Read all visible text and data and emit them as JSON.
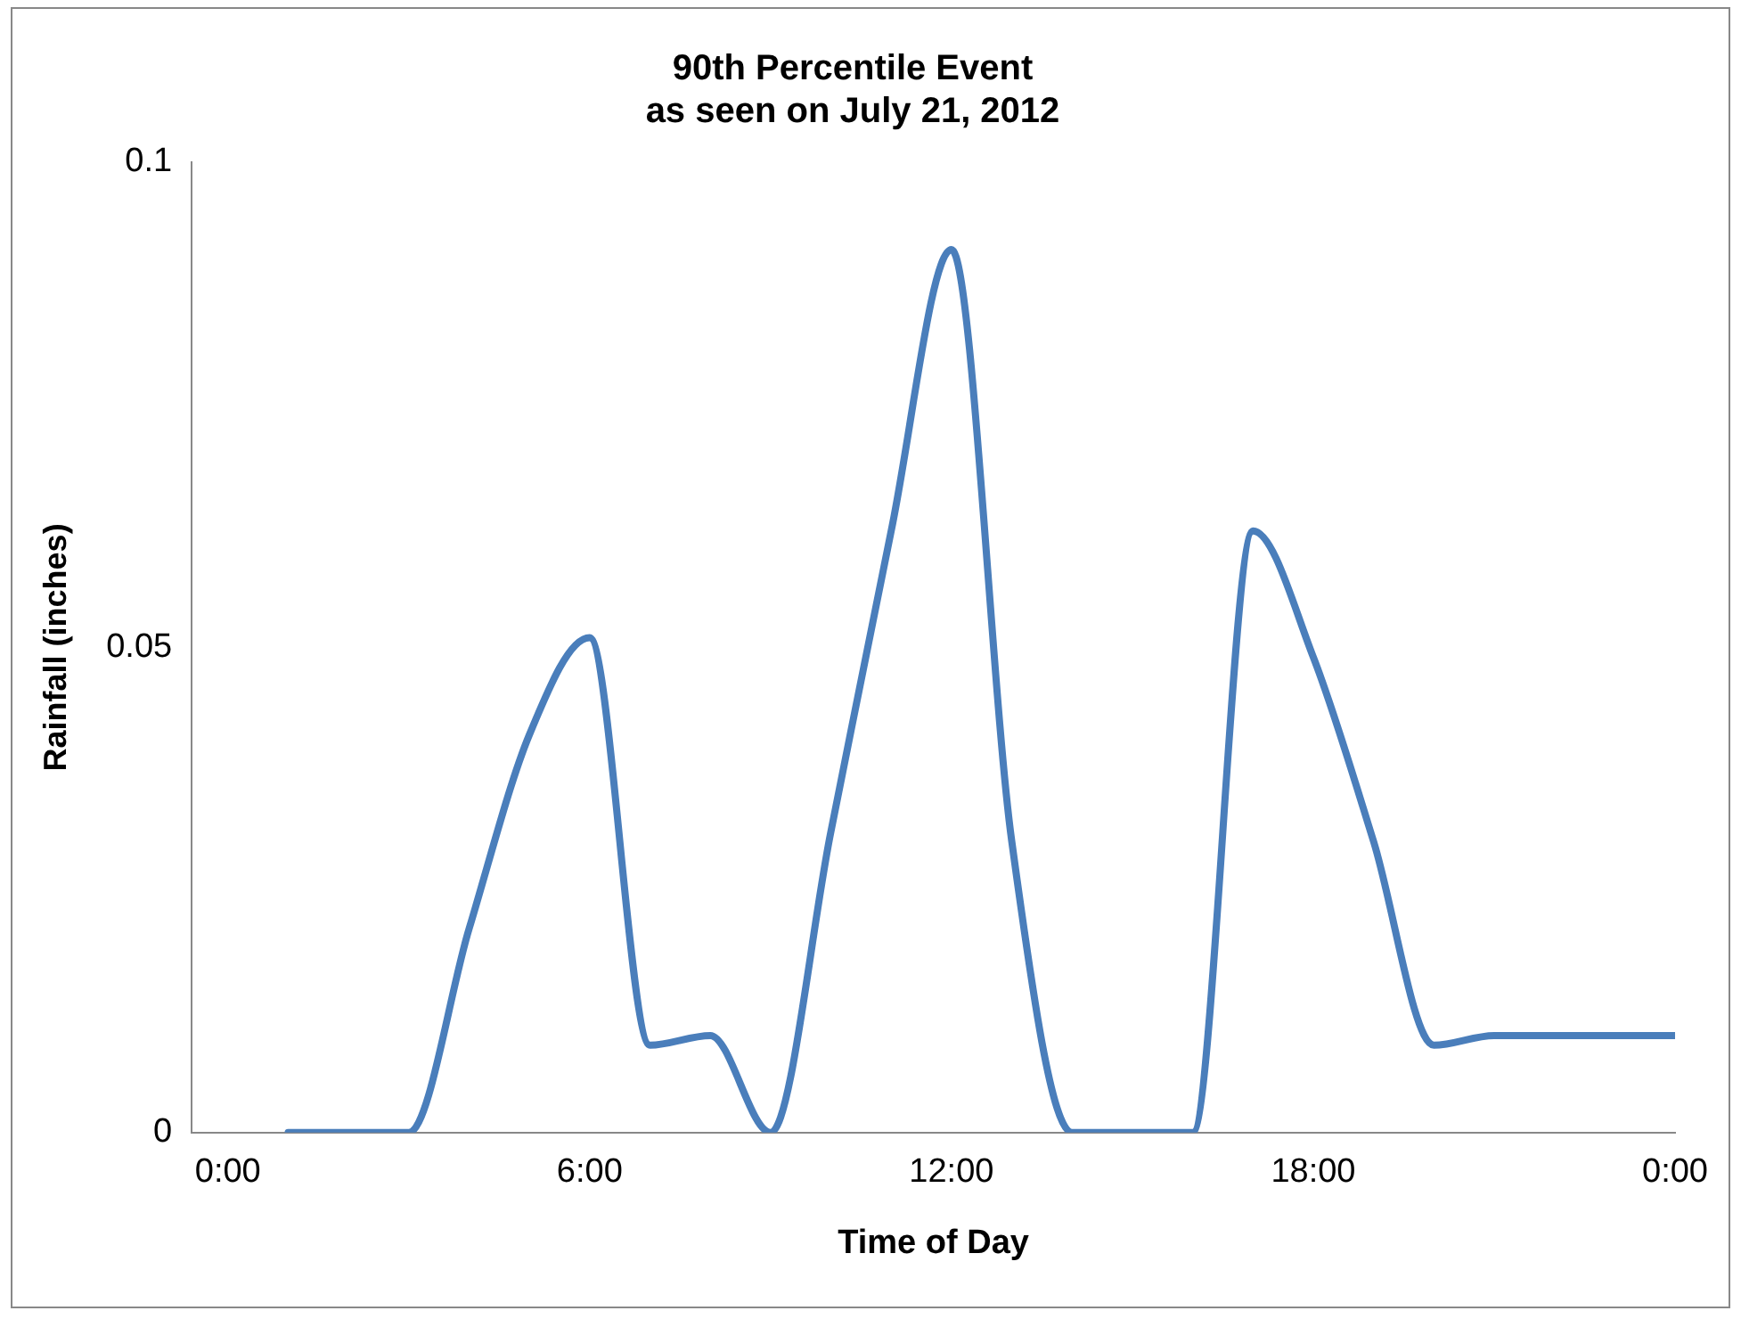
{
  "chart_data": {
    "type": "line",
    "title": "90th Percentile Event\nas seen on July 21, 2012",
    "xlabel": "Time of Day",
    "ylabel": "Rainfall (inches)",
    "x": [
      1,
      2,
      3,
      4,
      5,
      6,
      7,
      8,
      9,
      10,
      11,
      12,
      13,
      14,
      15,
      16,
      17,
      18,
      19,
      20,
      21,
      22,
      23,
      24
    ],
    "series": [
      {
        "color": "#4a7ebb",
        "values": [
          0,
          0,
          0,
          0.021,
          0.041,
          0.051,
          0.009,
          0.01,
          0,
          0.031,
          0.062,
          0.091,
          0.03,
          0,
          0,
          0,
          0.062,
          0.049,
          0.03,
          0.009,
          0.01,
          0.01,
          0.01,
          0.01
        ]
      }
    ],
    "xlim": [
      -0.6,
      24
    ],
    "xticks": [
      {
        "value": 0,
        "label": "0:00"
      },
      {
        "value": 6,
        "label": "6:00"
      },
      {
        "value": 12,
        "label": "12:00"
      },
      {
        "value": 18,
        "label": "18:00"
      },
      {
        "value": 24,
        "label": "0:00"
      }
    ],
    "ylim": [
      0,
      0.1
    ],
    "yticks": [
      0,
      0.05,
      0.1
    ],
    "grid": false,
    "legend": false,
    "marker": "none",
    "line_style": "solid"
  }
}
